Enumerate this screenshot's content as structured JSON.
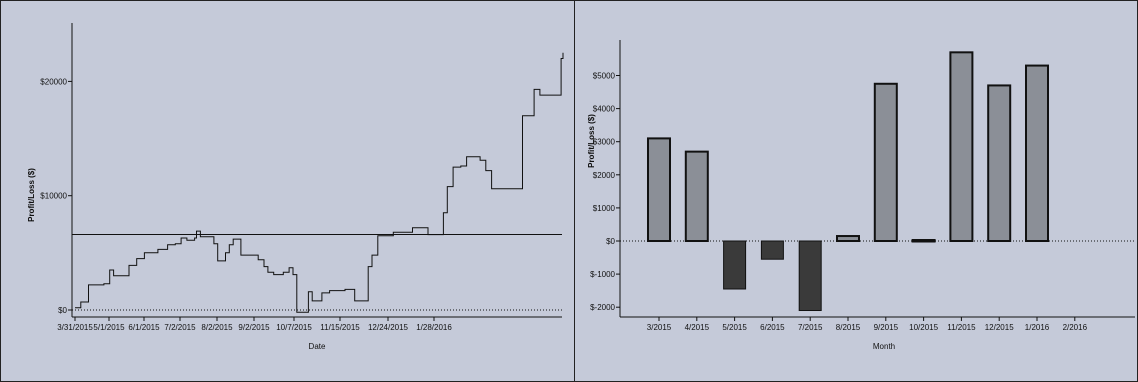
{
  "chart_data": [
    {
      "type": "line",
      "ylabel": "Profit/Loss ($)",
      "xlabel": "Date",
      "x_tick_labels": [
        "3/31/2015",
        "5/1/2015",
        "6/1/2015",
        "7/2/2015",
        "8/2/2015",
        "9/2/2015",
        "10/7/2015",
        "11/15/2015",
        "12/24/2015",
        "1/28/2016"
      ],
      "y_tick_labels": [
        "$0",
        "$10000",
        "$20000"
      ],
      "ylim": [
        -200,
        22500
      ],
      "reference_lines": [
        {
          "y": 6600,
          "style": "solid"
        },
        {
          "y": 0,
          "style": "dotted"
        }
      ],
      "series": [
        {
          "points": [
            [
              0,
              200
            ],
            [
              3,
              700
            ],
            [
              7,
              2200
            ],
            [
              15,
              2300
            ],
            [
              18,
              3500
            ],
            [
              20,
              3000
            ],
            [
              27,
              3000
            ],
            [
              28,
              3900
            ],
            [
              32,
              4500
            ],
            [
              36,
              5000
            ],
            [
              43,
              5300
            ],
            [
              48,
              5700
            ],
            [
              52,
              5800
            ],
            [
              55,
              6300
            ],
            [
              58,
              6100
            ],
            [
              62,
              6300
            ],
            [
              63,
              6900
            ],
            [
              65,
              6400
            ],
            [
              70,
              6400
            ],
            [
              72,
              5800
            ],
            [
              74,
              4300
            ],
            [
              78,
              5000
            ],
            [
              80,
              5700
            ],
            [
              82,
              6200
            ],
            [
              84,
              6200
            ],
            [
              86,
              4800
            ],
            [
              95,
              4400
            ],
            [
              98,
              3800
            ],
            [
              100,
              3300
            ],
            [
              103,
              3100
            ],
            [
              106,
              3100
            ],
            [
              108,
              3300
            ],
            [
              111,
              3700
            ],
            [
              113,
              3100
            ],
            [
              115,
              -200
            ],
            [
              120,
              -200
            ],
            [
              121,
              1600
            ],
            [
              123,
              800
            ],
            [
              127,
              800
            ],
            [
              128,
              1500
            ],
            [
              132,
              1700
            ],
            [
              140,
              1800
            ],
            [
              145,
              800
            ],
            [
              150,
              800
            ],
            [
              152,
              3800
            ],
            [
              154,
              4800
            ],
            [
              157,
              6500
            ],
            [
              160,
              6500
            ],
            [
              165,
              6800
            ],
            [
              170,
              6800
            ],
            [
              175,
              7200
            ],
            [
              182,
              7200
            ],
            [
              183,
              6600
            ],
            [
              190,
              6600
            ],
            [
              191,
              8500
            ],
            [
              193,
              10800
            ],
            [
              196,
              12500
            ],
            [
              200,
              12600
            ],
            [
              203,
              13400
            ],
            [
              210,
              13100
            ],
            [
              213,
              12200
            ],
            [
              216,
              10600
            ],
            [
              231,
              10600
            ],
            [
              232,
              17000
            ],
            [
              236,
              17000
            ],
            [
              238,
              19300
            ],
            [
              241,
              18800
            ],
            [
              249,
              18800
            ],
            [
              251,
              18800
            ],
            [
              252,
              22000
            ],
            [
              253,
              22500
            ]
          ]
        }
      ]
    },
    {
      "type": "bar",
      "ylabel": "Profit/Loss ($)",
      "xlabel": "Month",
      "categories": [
        "3/2015",
        "4/2015",
        "5/2015",
        "6/2015",
        "7/2015",
        "8/2015",
        "9/2015",
        "10/2015",
        "11/2015",
        "12/2015",
        "1/2016",
        "2/2016"
      ],
      "values": [
        3100,
        2700,
        -1450,
        -550,
        -2100,
        150,
        4750,
        30,
        5700,
        4700,
        5300,
        0
      ],
      "y_tick_labels": [
        "$-2000",
        "$-1000",
        "$0",
        "$1000",
        "$2000",
        "$3000",
        "$4000",
        "$5000"
      ],
      "ylim": [
        -2200,
        5800
      ],
      "positive_color": "#8b8f97",
      "negative_color": "#3a3a3a"
    }
  ]
}
